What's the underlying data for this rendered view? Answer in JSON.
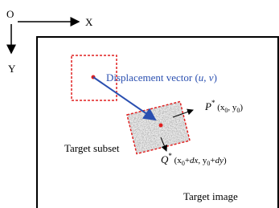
{
  "axes": {
    "origin": "O",
    "x": "X",
    "y": "Y"
  },
  "displacement": {
    "text": "Displacement vector (",
    "u": "u",
    "comma": ", ",
    "v": "v",
    "close": ")"
  },
  "point_p": {
    "name": "P",
    "star": "*",
    "open": " (x",
    "sub0": "0",
    "mid": ", y",
    "sub1": "0",
    "close": ")"
  },
  "point_q": {
    "name": "Q",
    "star": "*",
    "open": " (x",
    "sub0": "0",
    "plus1": "+",
    "dx": "dx",
    "mid": ", y",
    "sub1": "0",
    "plus2": "+",
    "dy": "dy",
    "close": ")"
  },
  "subset_label": "Target subset",
  "image_label": "Target image"
}
